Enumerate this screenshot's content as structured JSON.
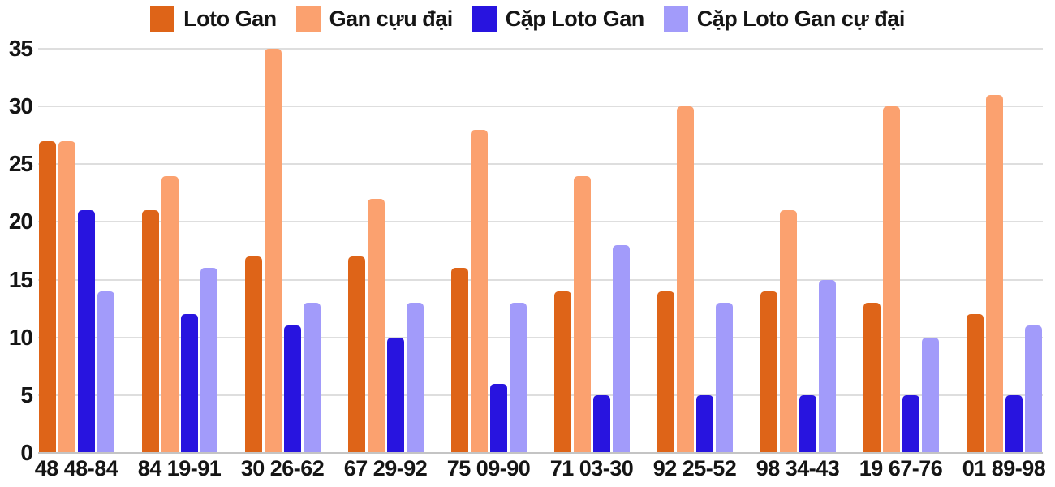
{
  "chart_data": {
    "type": "bar",
    "title": "",
    "categories": [
      "48 48-84",
      "84 19-91",
      "30 26-62",
      "67 29-92",
      "75 09-90",
      "71 03-30",
      "92 25-52",
      "98 34-43",
      "19 67-76",
      "01 89-98"
    ],
    "series": [
      {
        "name": "Loto Gan",
        "color": "#de6418",
        "values": [
          27,
          21,
          17,
          17,
          16,
          14,
          14,
          14,
          13,
          12
        ]
      },
      {
        "name": "Gan cựu đại",
        "color": "#fba16f",
        "values": [
          27,
          24,
          35,
          22,
          28,
          24,
          30,
          21,
          30,
          31
        ]
      },
      {
        "name": "Cặp Loto Gan",
        "color": "#2814df",
        "values": [
          21,
          12,
          11,
          10,
          6,
          5,
          5,
          5,
          5,
          5
        ]
      },
      {
        "name": "Cặp Loto Gan cự đại",
        "color": "#a29bfa",
        "values": [
          14,
          16,
          13,
          13,
          13,
          18,
          13,
          15,
          10,
          11
        ]
      }
    ],
    "xlabel": "",
    "ylabel": "",
    "yticks": [
      0,
      5,
      10,
      15,
      20,
      25,
      30,
      35
    ],
    "ylim": [
      0,
      35
    ],
    "grid": true,
    "legend_position": "top",
    "background_color": "#ffffff",
    "grid_color": "#dedede",
    "axis_line_color": "#c4c4c4",
    "text_color": "#151515"
  }
}
